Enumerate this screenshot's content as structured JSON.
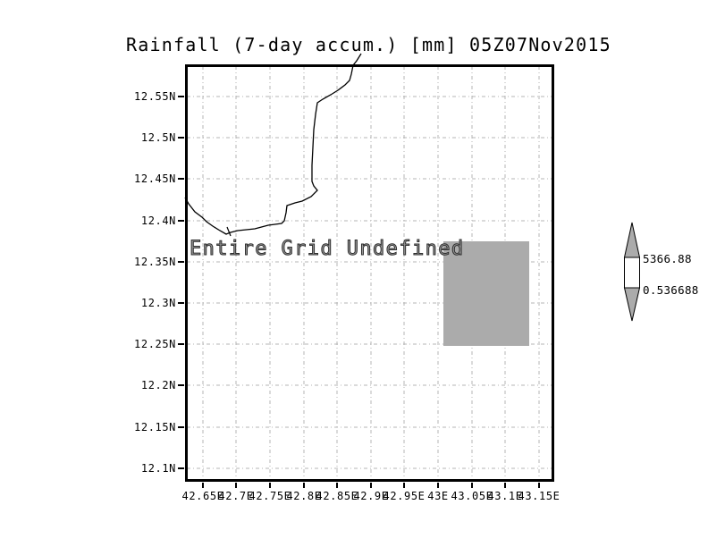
{
  "title": "Rainfall (7-day accum.) [mm] 05Z07Nov2015",
  "message": "Entire Grid Undefined",
  "y_axis": {
    "labels": [
      "12.55N",
      "12.5N",
      "12.45N",
      "12.4N",
      "12.35N",
      "12.3N",
      "12.25N",
      "12.2N",
      "12.15N",
      "12.1N"
    ]
  },
  "x_axis": {
    "labels": [
      "42.65E",
      "42.7E",
      "42.75E",
      "42.8E",
      "42.85E",
      "42.9E",
      "42.95E",
      "43E",
      "43.05E",
      "43.1E",
      "43.15E"
    ]
  },
  "colorbar": {
    "max_label": "5366.88",
    "min_label": "0.536688",
    "fill_color": "#ababab"
  },
  "colors": {
    "background": "#ffffff",
    "line": "#000000",
    "gridline": "#b4b4b4",
    "undefined_region_fill": "#ababab",
    "message_outline": "#2e2e2e"
  },
  "chart_data": {
    "type": "heatmap",
    "title": "Rainfall (7-day accum.) [mm] 05Z07Nov2015",
    "xlabel": "",
    "ylabel": "",
    "x_tick_labels": [
      "42.65E",
      "42.7E",
      "42.75E",
      "42.8E",
      "42.85E",
      "42.9E",
      "42.95E",
      "43E",
      "43.05E",
      "43.1E",
      "43.15E"
    ],
    "y_tick_labels": [
      "12.1N",
      "12.15N",
      "12.2N",
      "12.25N",
      "12.3N",
      "12.35N",
      "12.4N",
      "12.45N",
      "12.5N",
      "12.55N"
    ],
    "xlim": [
      42.624,
      43.172
    ],
    "ylim": [
      12.085,
      12.59
    ],
    "grid": true,
    "grid_style": "gray dash-dot",
    "values": [],
    "status_annotation": "Entire Grid Undefined",
    "undefined_shaded_region": {
      "lon": [
        43.01,
        43.14
      ],
      "lat": [
        12.25,
        12.376
      ]
    },
    "map_overlay": "coastline",
    "colorbar": {
      "position": "right",
      "min": 0.536688,
      "max": 5366.88,
      "shape": "double-arrow"
    }
  }
}
